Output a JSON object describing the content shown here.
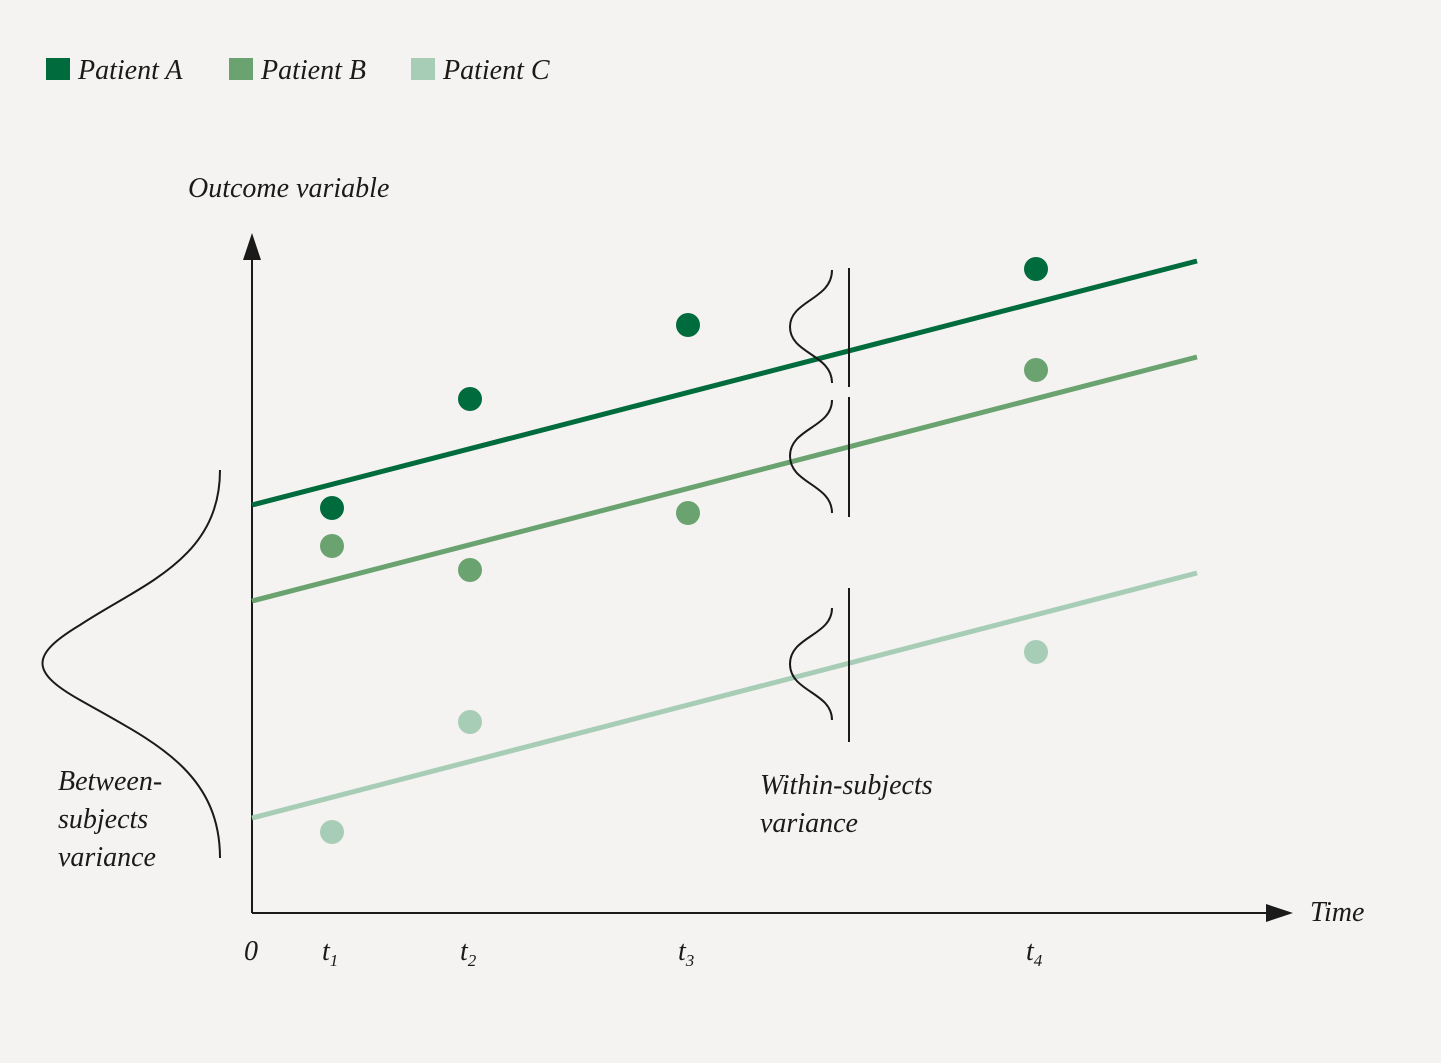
{
  "legend": [
    "Patient A",
    "Patient B",
    "Patient C"
  ],
  "y_axis_label": "Outcome variable",
  "x_axis_label": "Time",
  "x_ticks": {
    "origin": "0",
    "times": [
      {
        "base": "t",
        "sub": "1"
      },
      {
        "base": "t",
        "sub": "2"
      },
      {
        "base": "t",
        "sub": "3"
      },
      {
        "base": "t",
        "sub": "4"
      }
    ]
  },
  "between_label": [
    "Between-",
    "subjects",
    "variance"
  ],
  "within_label": [
    "Within-subjects",
    "variance"
  ]
}
